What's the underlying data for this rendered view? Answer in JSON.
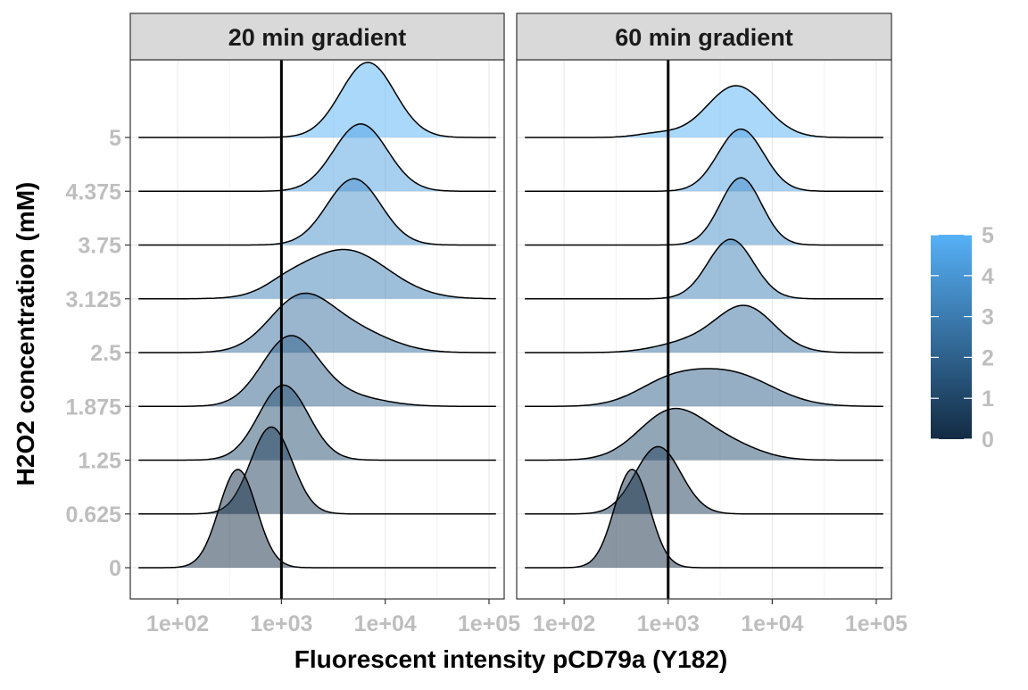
{
  "chart_data": {
    "type": "ridgeline",
    "xlabel": "Fluorescent intensity pCD79a (Y182)",
    "ylabel": "H2O2 concentration (mM)",
    "x_scale": "log10",
    "x_ticks": [
      "1e+02",
      "1e+03",
      "1e+04",
      "1e+05"
    ],
    "x_tick_values": [
      100,
      1000,
      10000,
      100000
    ],
    "xlim": [
      35,
      140000
    ],
    "y_categories": [
      "0",
      "0.625",
      "1.25",
      "1.875",
      "2.5",
      "3.125",
      "3.75",
      "4.375",
      "5"
    ],
    "vline_x": 1000,
    "grid": true,
    "legend": {
      "position": "right",
      "labels": [
        "5",
        "4",
        "3",
        "2",
        "1",
        "0"
      ],
      "values": [
        5,
        4,
        3,
        2,
        1,
        0
      ],
      "colors": {
        "low": "#132b43",
        "high": "#56b1f7"
      }
    },
    "panels": [
      {
        "title": "20 min gradient",
        "series": [
          {
            "level": 0,
            "peaks": [
              {
                "center": 380,
                "width_log10": 0.18,
                "height": 1.9
              }
            ]
          },
          {
            "level": 0.625,
            "peaks": [
              {
                "center": 800,
                "width_log10": 0.2,
                "height": 1.68
              }
            ]
          },
          {
            "level": 1.25,
            "peaks": [
              {
                "center": 1050,
                "width_log10": 0.24,
                "height": 1.45
              }
            ]
          },
          {
            "level": 1.875,
            "peaks": [
              {
                "center": 1200,
                "width_log10": 0.27,
                "height": 1.3
              },
              {
                "center": 4000,
                "width_log10": 0.35,
                "height": 0.2
              }
            ]
          },
          {
            "level": 2.5,
            "peaks": [
              {
                "center": 1500,
                "width_log10": 0.3,
                "height": 1.0
              },
              {
                "center": 5000,
                "width_log10": 0.35,
                "height": 0.4
              }
            ]
          },
          {
            "level": 3.125,
            "peaks": [
              {
                "center": 4000,
                "width_log10": 0.42,
                "height": 0.95
              },
              {
                "center": 1100,
                "width_log10": 0.2,
                "height": 0.12
              }
            ]
          },
          {
            "level": 3.75,
            "peaks": [
              {
                "center": 5000,
                "width_log10": 0.26,
                "height": 1.28
              }
            ]
          },
          {
            "level": 4.375,
            "peaks": [
              {
                "center": 5800,
                "width_log10": 0.26,
                "height": 1.3
              }
            ]
          },
          {
            "level": 5,
            "peaks": [
              {
                "center": 6800,
                "width_log10": 0.26,
                "height": 1.45
              }
            ]
          }
        ]
      },
      {
        "title": "60 min gradient",
        "series": [
          {
            "level": 0,
            "peaks": [
              {
                "center": 450,
                "width_log10": 0.17,
                "height": 1.9
              }
            ]
          },
          {
            "level": 0.625,
            "peaks": [
              {
                "center": 800,
                "width_log10": 0.22,
                "height": 1.3
              }
            ]
          },
          {
            "level": 1.25,
            "peaks": [
              {
                "center": 1100,
                "width_log10": 0.32,
                "height": 0.95
              },
              {
                "center": 4000,
                "width_log10": 0.3,
                "height": 0.25
              }
            ]
          },
          {
            "level": 1.875,
            "peaks": [
              {
                "center": 1000,
                "width_log10": 0.32,
                "height": 0.4
              },
              {
                "center": 4000,
                "width_log10": 0.4,
                "height": 0.62
              }
            ]
          },
          {
            "level": 2.5,
            "peaks": [
              {
                "center": 5500,
                "width_log10": 0.28,
                "height": 0.88
              },
              {
                "center": 1500,
                "width_log10": 0.3,
                "height": 0.18
              }
            ]
          },
          {
            "level": 3.125,
            "peaks": [
              {
                "center": 4000,
                "width_log10": 0.22,
                "height": 1.15
              }
            ]
          },
          {
            "level": 3.75,
            "peaks": [
              {
                "center": 5000,
                "width_log10": 0.2,
                "height": 1.3
              }
            ]
          },
          {
            "level": 4.375,
            "peaks": [
              {
                "center": 5000,
                "width_log10": 0.22,
                "height": 1.2
              }
            ]
          },
          {
            "level": 5,
            "peaks": [
              {
                "center": 4500,
                "width_log10": 0.28,
                "height": 1.0
              },
              {
                "center": 800,
                "width_log10": 0.2,
                "height": 0.08
              }
            ]
          }
        ]
      }
    ]
  }
}
